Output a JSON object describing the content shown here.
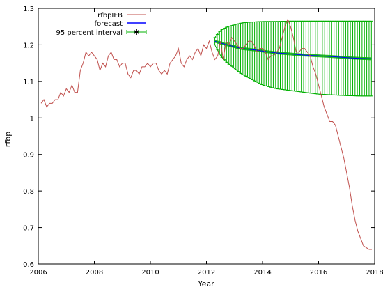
{
  "chart_data": {
    "type": "line",
    "title": "",
    "xlabel": "Year",
    "ylabel": "rfbp",
    "xlim": [
      2006,
      2018
    ],
    "ylim": [
      0.6,
      1.3
    ],
    "x_ticks": [
      "2006",
      "2008",
      "2010",
      "2012",
      "2014",
      "2016",
      "2018"
    ],
    "y_ticks": [
      "0.6",
      "0.7",
      "0.8",
      "0.9",
      "1",
      "1.1",
      "1.2",
      "1.3"
    ],
    "legend_position": "top-left",
    "grid": false,
    "series": [
      {
        "name": "rfbpIFB",
        "kind": "line",
        "color": "#c0504d",
        "x": [
          2006.1,
          2006.2,
          2006.3,
          2006.4,
          2006.5,
          2006.6,
          2006.7,
          2006.8,
          2006.9,
          2007.0,
          2007.1,
          2007.2,
          2007.3,
          2007.4,
          2007.5,
          2007.6,
          2007.7,
          2007.8,
          2007.9,
          2008.0,
          2008.1,
          2008.2,
          2008.3,
          2008.4,
          2008.5,
          2008.6,
          2008.7,
          2008.8,
          2008.9,
          2009.0,
          2009.1,
          2009.2,
          2009.3,
          2009.4,
          2009.5,
          2009.6,
          2009.7,
          2009.8,
          2009.9,
          2010.0,
          2010.1,
          2010.2,
          2010.3,
          2010.4,
          2010.5,
          2010.6,
          2010.7,
          2010.8,
          2010.9,
          2011.0,
          2011.1,
          2011.2,
          2011.3,
          2011.4,
          2011.5,
          2011.6,
          2011.7,
          2011.8,
          2011.9,
          2012.0,
          2012.1,
          2012.2,
          2012.3,
          2012.4,
          2012.5,
          2012.6,
          2012.7,
          2012.8,
          2012.9,
          2013.0,
          2013.1,
          2013.2,
          2013.3,
          2013.4,
          2013.5,
          2013.6,
          2013.7,
          2013.8,
          2013.9,
          2014.0,
          2014.1,
          2014.2,
          2014.3,
          2014.4,
          2014.5,
          2014.6,
          2014.7,
          2014.8,
          2014.9,
          2015.0,
          2015.1,
          2015.2,
          2015.3,
          2015.4,
          2015.5,
          2015.6,
          2015.7,
          2015.8,
          2015.9,
          2016.0,
          2016.1,
          2016.2,
          2016.3,
          2016.4,
          2016.5,
          2016.6,
          2016.7,
          2016.8,
          2016.9,
          2017.0,
          2017.1,
          2017.2,
          2017.3,
          2017.4,
          2017.5,
          2017.6,
          2017.7,
          2017.8,
          2017.9
        ],
        "y": [
          1.04,
          1.05,
          1.03,
          1.04,
          1.04,
          1.05,
          1.05,
          1.07,
          1.06,
          1.08,
          1.07,
          1.09,
          1.07,
          1.07,
          1.13,
          1.15,
          1.18,
          1.17,
          1.18,
          1.17,
          1.16,
          1.13,
          1.15,
          1.14,
          1.17,
          1.18,
          1.16,
          1.16,
          1.14,
          1.15,
          1.15,
          1.12,
          1.11,
          1.13,
          1.13,
          1.12,
          1.14,
          1.14,
          1.15,
          1.14,
          1.15,
          1.15,
          1.13,
          1.12,
          1.13,
          1.12,
          1.15,
          1.16,
          1.17,
          1.19,
          1.15,
          1.14,
          1.16,
          1.17,
          1.16,
          1.18,
          1.19,
          1.17,
          1.2,
          1.19,
          1.21,
          1.18,
          1.16,
          1.17,
          1.21,
          1.16,
          1.21,
          1.2,
          1.22,
          1.21,
          1.2,
          1.19,
          1.19,
          1.2,
          1.21,
          1.21,
          1.2,
          1.18,
          1.19,
          1.19,
          1.18,
          1.16,
          1.17,
          1.17,
          1.18,
          1.19,
          1.22,
          1.25,
          1.27,
          1.25,
          1.22,
          1.18,
          1.18,
          1.19,
          1.19,
          1.18,
          1.17,
          1.14,
          1.12,
          1.09,
          1.06,
          1.03,
          1.01,
          0.99,
          0.99,
          0.98,
          0.95,
          0.92,
          0.89,
          0.85,
          0.81,
          0.76,
          0.72,
          0.69,
          0.67,
          0.65,
          0.645,
          0.64,
          0.64
        ]
      },
      {
        "name": "forecast",
        "kind": "line",
        "color": "#0000ff",
        "x": [
          2012.3,
          2012.5,
          2012.75,
          2013.0,
          2013.25,
          2013.5,
          2013.75,
          2014.0,
          2014.5,
          2015.0,
          2015.5,
          2016.0,
          2016.5,
          2017.0,
          2017.5,
          2017.9
        ],
        "y": [
          1.21,
          1.205,
          1.2,
          1.195,
          1.19,
          1.188,
          1.186,
          1.183,
          1.178,
          1.175,
          1.172,
          1.17,
          1.168,
          1.165,
          1.163,
          1.162
        ]
      },
      {
        "name": "95 percent interval",
        "kind": "errorbar",
        "color": "#00b000",
        "x_range": [
          2012.3,
          2017.9
        ],
        "upper": [
          1.22,
          1.24,
          1.25,
          1.255,
          1.26,
          1.262,
          1.263,
          1.264,
          1.264,
          1.265,
          1.265,
          1.265,
          1.265,
          1.265,
          1.265,
          1.265
        ],
        "lower": [
          1.2,
          1.17,
          1.15,
          1.135,
          1.12,
          1.11,
          1.1,
          1.09,
          1.08,
          1.075,
          1.07,
          1.065,
          1.063,
          1.061,
          1.06,
          1.06
        ]
      }
    ]
  }
}
